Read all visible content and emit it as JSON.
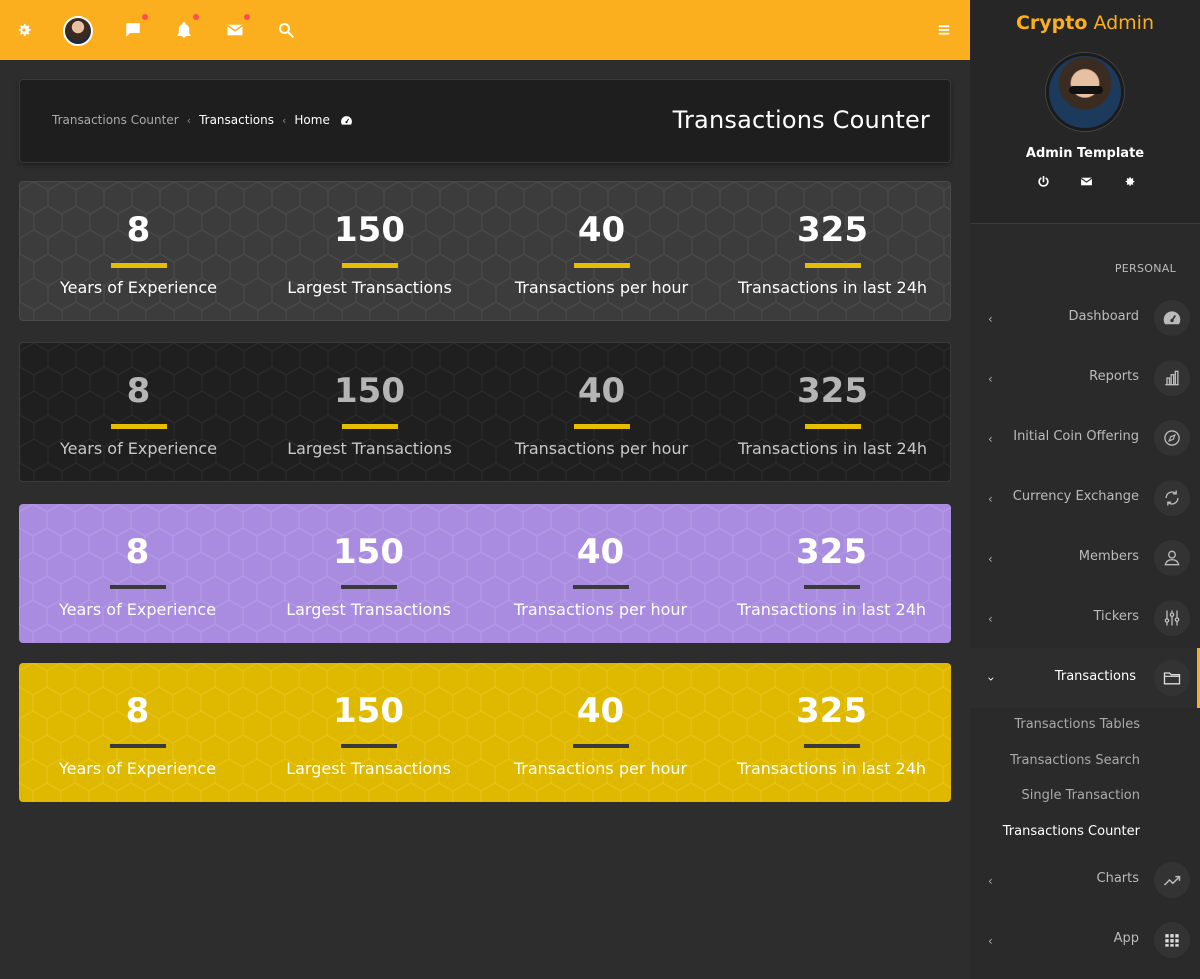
{
  "topbar": {
    "icons": [
      "gear-icon",
      "avatar",
      "chat-icon",
      "bell-icon",
      "mail-icon",
      "search-icon",
      "menu-icon"
    ]
  },
  "breadcrumb": {
    "items": [
      "Transactions Counter",
      "Transactions",
      "Home"
    ]
  },
  "page_title": "Transactions Counter",
  "stats": [
    {
      "value": "8",
      "label": "Years of Experience"
    },
    {
      "value": "150",
      "label": "Largest Transactions"
    },
    {
      "value": "40",
      "label": "Transactions per hour"
    },
    {
      "value": "325",
      "label": "Transactions in last 24h"
    }
  ],
  "colors": {
    "accent": "#fbaf1f",
    "bar_yellow": "#e6bd00",
    "purple": "#a98be0",
    "gold": "#dfb900"
  },
  "sidebar": {
    "logo_bold": "Crypto",
    "logo_rest": "Admin",
    "user_name": "Admin Template",
    "section_title": "PERSONAL",
    "items": [
      {
        "label": "Dashboard",
        "icon": "dashboard-icon"
      },
      {
        "label": "Reports",
        "icon": "bar-chart-icon"
      },
      {
        "label": "Initial Coin Offering",
        "icon": "compass-icon"
      },
      {
        "label": "Currency Exchange",
        "icon": "refresh-icon"
      },
      {
        "label": "Members",
        "icon": "user-icon"
      },
      {
        "label": "Tickers",
        "icon": "sliders-icon"
      },
      {
        "label": "Transactions",
        "icon": "folder-icon"
      },
      {
        "label": "Charts",
        "icon": "trend-icon"
      },
      {
        "label": "App",
        "icon": "grid-icon"
      }
    ],
    "sub_items": [
      "Transactions Tables",
      "Transactions Search",
      "Single Transaction",
      "Transactions Counter"
    ]
  }
}
